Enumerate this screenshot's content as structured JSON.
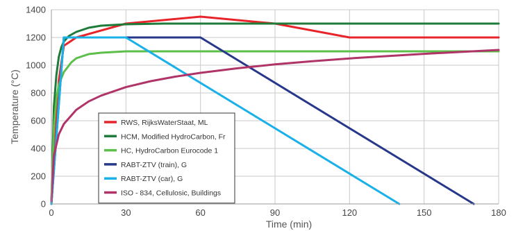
{
  "chart_data": {
    "type": "line",
    "xlabel": "Time (min)",
    "ylabel": "Temperature (°C)",
    "xlim": [
      0,
      180
    ],
    "ylim": [
      0,
      1400
    ],
    "xticks": [
      0,
      30,
      60,
      90,
      120,
      150,
      180
    ],
    "yticks": [
      0,
      200,
      400,
      600,
      800,
      1000,
      1200,
      1400
    ],
    "grid": true,
    "legend_position": "lower-left",
    "series": [
      {
        "name": "RWS, RijksWaterStaat, ML",
        "color": "#e8242b",
        "points": [
          [
            0,
            0
          ],
          [
            3,
            890
          ],
          [
            5,
            1140
          ],
          [
            10,
            1200
          ],
          [
            30,
            1300
          ],
          [
            60,
            1350
          ],
          [
            90,
            1300
          ],
          [
            120,
            1200
          ],
          [
            180,
            1200
          ]
        ]
      },
      {
        "name": "HCM, Modified HydroCarbon, Fr",
        "color": "#1e7b3a",
        "points": [
          [
            0,
            0
          ],
          [
            1,
            700
          ],
          [
            2,
            930
          ],
          [
            3,
            1060
          ],
          [
            4,
            1130
          ],
          [
            5,
            1170
          ],
          [
            7,
            1210
          ],
          [
            10,
            1240
          ],
          [
            15,
            1270
          ],
          [
            20,
            1285
          ],
          [
            30,
            1295
          ],
          [
            45,
            1300
          ],
          [
            180,
            1300
          ]
        ]
      },
      {
        "name": "HC, HydroCarbon Eurocode 1",
        "color": "#5cbf4a",
        "points": [
          [
            0,
            0
          ],
          [
            1,
            560
          ],
          [
            2,
            760
          ],
          [
            3,
            860
          ],
          [
            5,
            950
          ],
          [
            8,
            1020
          ],
          [
            10,
            1050
          ],
          [
            15,
            1080
          ],
          [
            20,
            1090
          ],
          [
            30,
            1100
          ],
          [
            180,
            1100
          ]
        ]
      },
      {
        "name": "RABT-ZTV (train), G",
        "color": "#27378a",
        "points": [
          [
            0,
            0
          ],
          [
            5,
            1200
          ],
          [
            60,
            1200
          ],
          [
            170,
            0
          ]
        ]
      },
      {
        "name": "RABT-ZTV (car), G",
        "color": "#1ab0e8",
        "points": [
          [
            0,
            0
          ],
          [
            5,
            1200
          ],
          [
            30,
            1200
          ],
          [
            140,
            0
          ]
        ]
      },
      {
        "name": "ISO - 834, Cellulosic, Buildings",
        "color": "#b03467",
        "points": [
          [
            0,
            20
          ],
          [
            1,
            349
          ],
          [
            3,
            502
          ],
          [
            5,
            576
          ],
          [
            10,
            678
          ],
          [
            15,
            739
          ],
          [
            20,
            781
          ],
          [
            30,
            842
          ],
          [
            40,
            885
          ],
          [
            50,
            918
          ],
          [
            60,
            945
          ],
          [
            75,
            978
          ],
          [
            90,
            1006
          ],
          [
            105,
            1029
          ],
          [
            120,
            1049
          ],
          [
            150,
            1082
          ],
          [
            180,
            1110
          ]
        ]
      }
    ]
  }
}
